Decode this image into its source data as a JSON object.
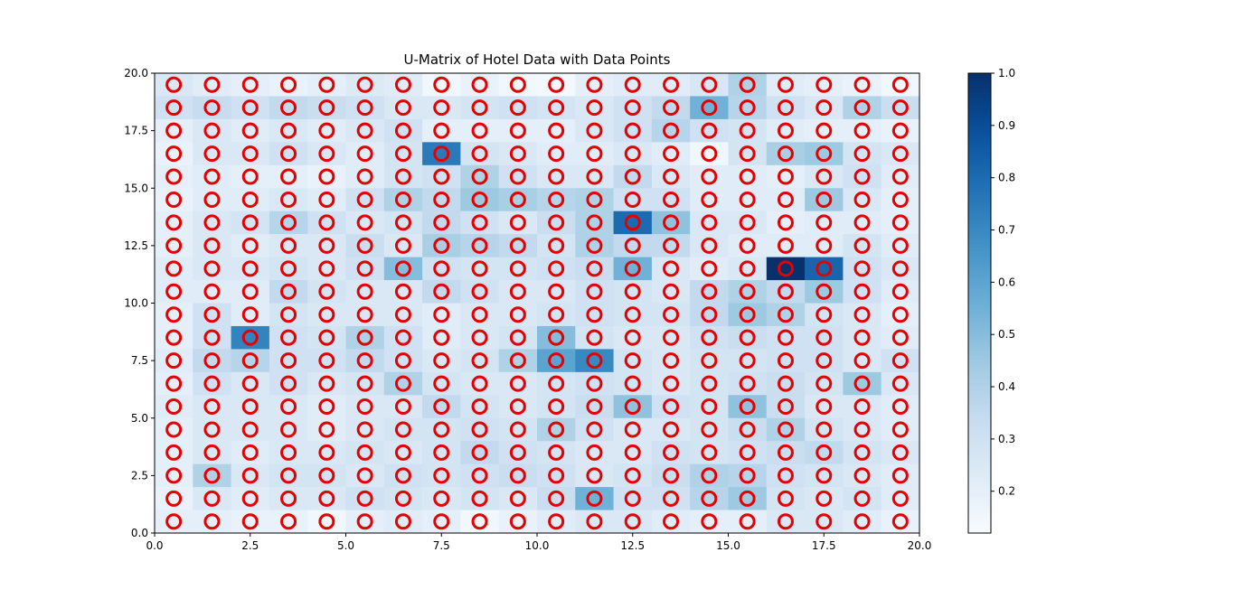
{
  "chart_data": {
    "type": "heatmap",
    "title": "U-Matrix of Hotel Data with Data Points",
    "xlabel": "",
    "ylabel": "",
    "xlim": [
      0,
      20
    ],
    "ylim": [
      0,
      20
    ],
    "xticks": [
      "0.0",
      "2.5",
      "5.0",
      "7.5",
      "10.0",
      "12.5",
      "15.0",
      "17.5",
      "20.0"
    ],
    "yticks": [
      "0.0",
      "2.5",
      "5.0",
      "7.5",
      "10.0",
      "12.5",
      "15.0",
      "17.5",
      "20.0"
    ],
    "colormap": "Blues",
    "colorbar": {
      "range": [
        0.12,
        1.0
      ],
      "ticks": [
        "0.2",
        "0.3",
        "0.4",
        "0.5",
        "0.6",
        "0.7",
        "0.8",
        "0.9",
        "1.0"
      ]
    },
    "marker": {
      "shape": "circle-outline",
      "color": "#e50000"
    },
    "marker_x": [
      0.5,
      1.5,
      2.5,
      3.5,
      4.5,
      5.5,
      6.5,
      7.5,
      8.5,
      9.5,
      10.5,
      11.5,
      12.5,
      13.5,
      14.5,
      15.5,
      16.5,
      17.5,
      18.5,
      19.5
    ],
    "marker_y": [
      0.5,
      1.5,
      2.5,
      3.5,
      4.5,
      5.5,
      6.5,
      7.5,
      8.5,
      9.5,
      10.5,
      11.5,
      12.5,
      13.5,
      14.5,
      15.5,
      16.5,
      17.5,
      18.5,
      19.5
    ],
    "matrix_rows_top_to_bottom": [
      [
        0.25,
        0.22,
        0.2,
        0.18,
        0.2,
        0.24,
        0.22,
        0.15,
        0.18,
        0.15,
        0.14,
        0.2,
        0.22,
        0.22,
        0.26,
        0.4,
        0.22,
        0.2,
        0.18,
        0.15
      ],
      [
        0.3,
        0.33,
        0.3,
        0.35,
        0.32,
        0.3,
        0.25,
        0.25,
        0.28,
        0.3,
        0.28,
        0.25,
        0.3,
        0.35,
        0.55,
        0.38,
        0.3,
        0.25,
        0.4,
        0.32
      ],
      [
        0.2,
        0.25,
        0.22,
        0.25,
        0.22,
        0.25,
        0.3,
        0.2,
        0.2,
        0.2,
        0.2,
        0.25,
        0.3,
        0.38,
        0.3,
        0.28,
        0.22,
        0.2,
        0.2,
        0.18
      ],
      [
        0.18,
        0.25,
        0.25,
        0.3,
        0.25,
        0.22,
        0.28,
        0.75,
        0.28,
        0.25,
        0.22,
        0.22,
        0.25,
        0.22,
        0.15,
        0.28,
        0.42,
        0.45,
        0.28,
        0.25
      ],
      [
        0.2,
        0.22,
        0.2,
        0.2,
        0.18,
        0.22,
        0.28,
        0.3,
        0.4,
        0.3,
        0.25,
        0.25,
        0.35,
        0.25,
        0.22,
        0.22,
        0.2,
        0.25,
        0.3,
        0.22
      ],
      [
        0.18,
        0.22,
        0.22,
        0.25,
        0.22,
        0.3,
        0.4,
        0.35,
        0.45,
        0.42,
        0.38,
        0.4,
        0.3,
        0.3,
        0.22,
        0.22,
        0.22,
        0.45,
        0.25,
        0.2
      ],
      [
        0.2,
        0.25,
        0.28,
        0.38,
        0.3,
        0.25,
        0.28,
        0.35,
        0.3,
        0.25,
        0.32,
        0.4,
        0.8,
        0.48,
        0.25,
        0.25,
        0.2,
        0.22,
        0.22,
        0.2
      ],
      [
        0.2,
        0.25,
        0.22,
        0.25,
        0.25,
        0.32,
        0.25,
        0.42,
        0.38,
        0.35,
        0.28,
        0.4,
        0.35,
        0.35,
        0.25,
        0.22,
        0.22,
        0.22,
        0.28,
        0.22
      ],
      [
        0.22,
        0.25,
        0.25,
        0.28,
        0.25,
        0.3,
        0.5,
        0.3,
        0.28,
        0.28,
        0.3,
        0.32,
        0.55,
        0.25,
        0.22,
        0.25,
        1.0,
        0.82,
        0.3,
        0.25
      ],
      [
        0.22,
        0.22,
        0.22,
        0.35,
        0.28,
        0.25,
        0.25,
        0.35,
        0.3,
        0.25,
        0.25,
        0.3,
        0.28,
        0.25,
        0.35,
        0.4,
        0.35,
        0.45,
        0.3,
        0.22
      ],
      [
        0.2,
        0.3,
        0.22,
        0.28,
        0.25,
        0.25,
        0.25,
        0.22,
        0.25,
        0.25,
        0.28,
        0.3,
        0.28,
        0.28,
        0.35,
        0.45,
        0.4,
        0.28,
        0.25,
        0.2
      ],
      [
        0.2,
        0.3,
        0.72,
        0.3,
        0.28,
        0.4,
        0.3,
        0.22,
        0.25,
        0.28,
        0.5,
        0.28,
        0.25,
        0.25,
        0.3,
        0.32,
        0.3,
        0.3,
        0.25,
        0.22
      ],
      [
        0.22,
        0.35,
        0.38,
        0.3,
        0.3,
        0.35,
        0.3,
        0.25,
        0.28,
        0.4,
        0.6,
        0.7,
        0.28,
        0.25,
        0.28,
        0.28,
        0.3,
        0.3,
        0.25,
        0.3
      ],
      [
        0.2,
        0.3,
        0.25,
        0.3,
        0.25,
        0.28,
        0.4,
        0.28,
        0.25,
        0.25,
        0.28,
        0.3,
        0.28,
        0.25,
        0.28,
        0.3,
        0.32,
        0.28,
        0.45,
        0.25
      ],
      [
        0.22,
        0.25,
        0.25,
        0.25,
        0.22,
        0.25,
        0.25,
        0.35,
        0.28,
        0.25,
        0.28,
        0.32,
        0.48,
        0.3,
        0.28,
        0.48,
        0.32,
        0.25,
        0.25,
        0.22
      ],
      [
        0.2,
        0.25,
        0.25,
        0.25,
        0.22,
        0.25,
        0.28,
        0.28,
        0.3,
        0.28,
        0.4,
        0.3,
        0.25,
        0.25,
        0.28,
        0.32,
        0.4,
        0.28,
        0.25,
        0.22
      ],
      [
        0.2,
        0.25,
        0.22,
        0.25,
        0.25,
        0.28,
        0.25,
        0.28,
        0.35,
        0.3,
        0.28,
        0.25,
        0.25,
        0.3,
        0.28,
        0.3,
        0.32,
        0.35,
        0.28,
        0.25
      ],
      [
        0.2,
        0.4,
        0.25,
        0.28,
        0.28,
        0.25,
        0.3,
        0.28,
        0.3,
        0.32,
        0.3,
        0.25,
        0.28,
        0.32,
        0.4,
        0.38,
        0.3,
        0.28,
        0.25,
        0.22
      ],
      [
        0.18,
        0.25,
        0.22,
        0.25,
        0.25,
        0.3,
        0.28,
        0.25,
        0.28,
        0.25,
        0.32,
        0.55,
        0.3,
        0.3,
        0.38,
        0.45,
        0.28,
        0.25,
        0.28,
        0.22
      ],
      [
        0.2,
        0.2,
        0.18,
        0.18,
        0.15,
        0.2,
        0.22,
        0.2,
        0.15,
        0.18,
        0.22,
        0.25,
        0.25,
        0.22,
        0.2,
        0.2,
        0.25,
        0.25,
        0.22,
        0.18
      ]
    ]
  }
}
